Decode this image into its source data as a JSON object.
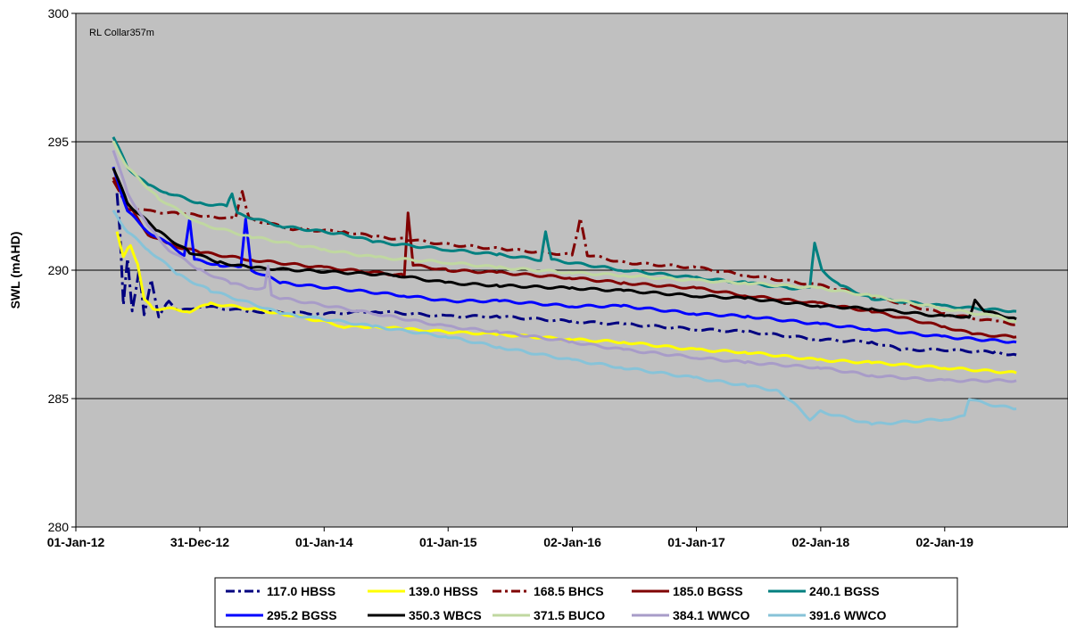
{
  "chart_data": {
    "type": "line",
    "ylabel": "SWL (mAHD)",
    "ylim": [
      280,
      300
    ],
    "yticks": [
      280,
      285,
      290,
      295,
      300
    ],
    "xlim": [
      "2012-01-01",
      "2019-12-31"
    ],
    "xticks": [
      {
        "label": "01-Jan-12",
        "date": "2012-01-01"
      },
      {
        "label": "31-Dec-12",
        "date": "2012-12-31"
      },
      {
        "label": "01-Jan-14",
        "date": "2014-01-01"
      },
      {
        "label": "01-Jan-15",
        "date": "2015-01-01"
      },
      {
        "label": "02-Jan-16",
        "date": "2016-01-02"
      },
      {
        "label": "01-Jan-17",
        "date": "2017-01-01"
      },
      {
        "label": "02-Jan-18",
        "date": "2018-01-02"
      },
      {
        "label": "02-Jan-19",
        "date": "2019-01-02"
      }
    ],
    "annotation": "RL Collar357m",
    "grid": "horizontal",
    "legend_position": "bottom",
    "plot_background": "#c0c0c0",
    "series": [
      {
        "name": "117.0 HBSS",
        "color": "#000080",
        "dash": "dashdot",
        "points": [
          [
            "2012-05-01",
            293.0
          ],
          [
            "2012-05-10",
            291.5
          ],
          [
            "2012-05-20",
            288.6
          ],
          [
            "2012-06-01",
            290.5
          ],
          [
            "2012-06-15",
            288.4
          ],
          [
            "2012-07-05",
            290.0
          ],
          [
            "2012-07-20",
            288.3
          ],
          [
            "2012-08-10",
            289.6
          ],
          [
            "2012-09-01",
            288.2
          ],
          [
            "2012-10-01",
            288.8
          ],
          [
            "2012-11-01",
            288.4
          ],
          [
            "2013-01-01",
            288.6
          ],
          [
            "2013-06-01",
            288.4
          ],
          [
            "2014-01-01",
            288.3
          ],
          [
            "2014-06-01",
            288.4
          ],
          [
            "2015-01-01",
            288.2
          ],
          [
            "2015-06-01",
            288.2
          ],
          [
            "2016-01-01",
            288.0
          ],
          [
            "2016-06-01",
            287.9
          ],
          [
            "2017-01-01",
            287.7
          ],
          [
            "2017-06-01",
            287.6
          ],
          [
            "2018-01-01",
            287.3
          ],
          [
            "2018-06-01",
            287.2
          ],
          [
            "2018-09-01",
            286.9
          ],
          [
            "2019-01-01",
            286.9
          ],
          [
            "2019-06-01",
            286.8
          ],
          [
            "2019-08-01",
            286.7
          ]
        ]
      },
      {
        "name": "139.0 HBSS",
        "color": "#ffff00",
        "dash": "solid",
        "points": [
          [
            "2012-05-01",
            291.5
          ],
          [
            "2012-05-20",
            290.5
          ],
          [
            "2012-06-10",
            291.0
          ],
          [
            "2012-07-01",
            290.2
          ],
          [
            "2012-07-20",
            288.9
          ],
          [
            "2012-08-15",
            288.5
          ],
          [
            "2012-10-01",
            288.5
          ],
          [
            "2012-12-01",
            288.4
          ],
          [
            "2013-02-01",
            288.7
          ],
          [
            "2013-06-01",
            288.5
          ],
          [
            "2013-09-01",
            288.3
          ],
          [
            "2014-01-01",
            288.0
          ],
          [
            "2014-03-01",
            287.8
          ],
          [
            "2014-06-01",
            287.8
          ],
          [
            "2014-09-01",
            287.7
          ],
          [
            "2015-01-01",
            287.6
          ],
          [
            "2015-06-01",
            287.5
          ],
          [
            "2016-01-01",
            287.3
          ],
          [
            "2016-06-01",
            287.2
          ],
          [
            "2017-01-01",
            286.9
          ],
          [
            "2017-06-01",
            286.8
          ],
          [
            "2018-01-01",
            286.5
          ],
          [
            "2018-06-01",
            286.4
          ],
          [
            "2019-01-01",
            286.2
          ],
          [
            "2019-08-01",
            286.0
          ]
        ]
      },
      {
        "name": "168.5 BHCS",
        "color": "#800000",
        "dash": "dashdot",
        "points": [
          [
            "2012-04-20",
            293.5
          ],
          [
            "2012-06-01",
            292.4
          ],
          [
            "2012-08-01",
            292.3
          ],
          [
            "2012-11-01",
            292.2
          ],
          [
            "2013-02-01",
            292.1
          ],
          [
            "2013-04-15",
            292.0
          ],
          [
            "2013-05-05",
            293.1
          ],
          [
            "2013-05-25",
            292.0
          ],
          [
            "2013-10-01",
            291.6
          ],
          [
            "2014-03-01",
            291.5
          ],
          [
            "2014-06-01",
            291.3
          ],
          [
            "2014-09-01",
            291.2
          ],
          [
            "2015-01-01",
            291.0
          ],
          [
            "2015-07-01",
            290.8
          ],
          [
            "2016-01-01",
            290.6
          ],
          [
            "2016-01-25",
            292.0
          ],
          [
            "2016-02-15",
            290.6
          ],
          [
            "2016-06-01",
            290.3
          ],
          [
            "2017-01-01",
            290.1
          ],
          [
            "2017-06-01",
            289.8
          ],
          [
            "2018-01-01",
            289.4
          ],
          [
            "2018-06-01",
            289.0
          ],
          [
            "2019-01-01",
            288.3
          ],
          [
            "2019-06-01",
            288.0
          ],
          [
            "2019-08-01",
            287.9
          ]
        ]
      },
      {
        "name": "185.0 BGSS",
        "color": "#800000",
        "dash": "solid",
        "points": [
          [
            "2012-04-20",
            293.6
          ],
          [
            "2012-06-01",
            292.6
          ],
          [
            "2012-08-01",
            291.4
          ],
          [
            "2012-10-01",
            291.0
          ],
          [
            "2013-01-01",
            290.7
          ],
          [
            "2013-06-01",
            290.4
          ],
          [
            "2014-01-01",
            290.1
          ],
          [
            "2014-08-25",
            289.8
          ],
          [
            "2014-09-05",
            292.2
          ],
          [
            "2014-09-20",
            290.2
          ],
          [
            "2015-01-01",
            290.0
          ],
          [
            "2015-06-01",
            289.9
          ],
          [
            "2016-01-01",
            289.7
          ],
          [
            "2016-06-01",
            289.5
          ],
          [
            "2017-01-01",
            289.3
          ],
          [
            "2017-06-01",
            289.0
          ],
          [
            "2018-01-01",
            288.7
          ],
          [
            "2018-06-01",
            288.4
          ],
          [
            "2019-01-01",
            287.8
          ],
          [
            "2019-04-01",
            287.5
          ],
          [
            "2019-08-01",
            287.4
          ]
        ]
      },
      {
        "name": "240.1 BGSS",
        "color": "#008080",
        "dash": "solid",
        "points": [
          [
            "2012-04-20",
            295.2
          ],
          [
            "2012-06-01",
            294.0
          ],
          [
            "2012-08-01",
            293.3
          ],
          [
            "2012-10-01",
            293.0
          ],
          [
            "2013-01-01",
            292.6
          ],
          [
            "2013-03-20",
            292.5
          ],
          [
            "2013-04-05",
            293.0
          ],
          [
            "2013-04-20",
            292.2
          ],
          [
            "2013-09-01",
            291.7
          ],
          [
            "2014-03-01",
            291.4
          ],
          [
            "2014-06-01",
            291.1
          ],
          [
            "2015-01-01",
            290.8
          ],
          [
            "2015-06-01",
            290.6
          ],
          [
            "2015-10-01",
            290.4
          ],
          [
            "2015-10-15",
            291.5
          ],
          [
            "2015-11-01",
            290.4
          ],
          [
            "2016-06-01",
            290.0
          ],
          [
            "2017-01-01",
            289.7
          ],
          [
            "2017-06-01",
            289.5
          ],
          [
            "2017-10-01",
            289.3
          ],
          [
            "2017-12-01",
            289.3
          ],
          [
            "2017-12-15",
            291.1
          ],
          [
            "2018-01-05",
            290.0
          ],
          [
            "2018-03-01",
            289.4
          ],
          [
            "2018-06-01",
            288.9
          ],
          [
            "2019-01-01",
            288.6
          ],
          [
            "2019-08-01",
            288.4
          ]
        ]
      },
      {
        "name": "295.2 BGSS",
        "color": "#0000ff",
        "dash": "solid",
        "points": [
          [
            "2012-04-20",
            294.0
          ],
          [
            "2012-06-01",
            292.3
          ],
          [
            "2012-08-01",
            291.5
          ],
          [
            "2012-10-01",
            291.0
          ],
          [
            "2012-11-15",
            290.6
          ],
          [
            "2012-12-01",
            292.0
          ],
          [
            "2012-12-15",
            290.4
          ],
          [
            "2013-03-01",
            290.2
          ],
          [
            "2013-05-01",
            290.1
          ],
          [
            "2013-05-15",
            292.0
          ],
          [
            "2013-06-01",
            290.0
          ],
          [
            "2013-09-01",
            289.5
          ],
          [
            "2014-09-01",
            289.0
          ],
          [
            "2015-01-01",
            288.8
          ],
          [
            "2015-06-01",
            288.8
          ],
          [
            "2016-01-01",
            288.6
          ],
          [
            "2016-06-01",
            288.6
          ],
          [
            "2017-01-01",
            288.3
          ],
          [
            "2017-06-01",
            288.2
          ],
          [
            "2018-01-01",
            287.9
          ],
          [
            "2018-06-01",
            287.7
          ],
          [
            "2019-01-01",
            287.4
          ],
          [
            "2019-08-01",
            287.2
          ]
        ]
      },
      {
        "name": "350.3 WBCS",
        "color": "#000000",
        "dash": "solid",
        "points": [
          [
            "2012-04-20",
            294.0
          ],
          [
            "2012-06-01",
            292.6
          ],
          [
            "2012-09-01",
            291.5
          ],
          [
            "2012-12-01",
            290.7
          ],
          [
            "2013-03-01",
            290.3
          ],
          [
            "2013-06-01",
            290.1
          ],
          [
            "2014-08-01",
            289.8
          ],
          [
            "2015-01-01",
            289.5
          ],
          [
            "2015-06-01",
            289.4
          ],
          [
            "2016-01-01",
            289.3
          ],
          [
            "2016-06-01",
            289.2
          ],
          [
            "2017-01-01",
            289.0
          ],
          [
            "2017-06-01",
            288.9
          ],
          [
            "2018-01-01",
            288.6
          ],
          [
            "2018-06-01",
            288.5
          ],
          [
            "2019-01-01",
            288.2
          ],
          [
            "2019-03-15",
            288.2
          ],
          [
            "2019-04-01",
            288.8
          ],
          [
            "2019-05-01",
            288.4
          ],
          [
            "2019-08-01",
            288.1
          ]
        ]
      },
      {
        "name": "371.5 BUCO",
        "color": "#c0d8a0",
        "dash": "solid",
        "points": [
          [
            "2012-04-20",
            295.0
          ],
          [
            "2012-06-01",
            294.0
          ],
          [
            "2012-09-01",
            292.8
          ],
          [
            "2013-01-01",
            291.8
          ],
          [
            "2013-06-01",
            291.3
          ],
          [
            "2014-01-01",
            290.8
          ],
          [
            "2014-06-01",
            290.5
          ],
          [
            "2015-01-01",
            290.3
          ],
          [
            "2015-06-01",
            290.1
          ],
          [
            "2016-01-01",
            289.9
          ],
          [
            "2016-06-01",
            289.8
          ],
          [
            "2017-01-01",
            289.6
          ],
          [
            "2017-06-01",
            289.5
          ],
          [
            "2018-01-01",
            289.3
          ],
          [
            "2018-06-01",
            289.0
          ],
          [
            "2019-01-01",
            288.5
          ],
          [
            "2019-06-01",
            288.2
          ],
          [
            "2019-08-01",
            288.0
          ]
        ]
      },
      {
        "name": "384.1 WWCO",
        "color": "#a89cc8",
        "dash": "solid",
        "points": [
          [
            "2012-04-20",
            294.7
          ],
          [
            "2012-06-01",
            293.0
          ],
          [
            "2012-08-01",
            291.7
          ],
          [
            "2012-10-01",
            290.8
          ],
          [
            "2013-01-01",
            290.0
          ],
          [
            "2013-04-01",
            289.5
          ],
          [
            "2013-06-01",
            289.3
          ],
          [
            "2013-07-10",
            289.3
          ],
          [
            "2013-07-20",
            290.2
          ],
          [
            "2013-07-30",
            289.0
          ],
          [
            "2013-09-01",
            288.9
          ],
          [
            "2014-06-01",
            288.3
          ],
          [
            "2015-01-01",
            287.8
          ],
          [
            "2015-06-01",
            287.6
          ],
          [
            "2016-01-01",
            287.2
          ],
          [
            "2016-06-01",
            286.9
          ],
          [
            "2017-01-01",
            286.6
          ],
          [
            "2017-06-01",
            286.4
          ],
          [
            "2018-01-01",
            286.2
          ],
          [
            "2018-06-01",
            285.9
          ],
          [
            "2019-01-01",
            285.7
          ],
          [
            "2019-08-01",
            285.7
          ]
        ]
      },
      {
        "name": "391.6 WWCO",
        "color": "#87c3d8",
        "dash": "solid",
        "points": [
          [
            "2012-04-20",
            292.3
          ],
          [
            "2012-06-01",
            291.5
          ],
          [
            "2012-08-01",
            290.8
          ],
          [
            "2012-11-01",
            289.8
          ],
          [
            "2013-02-01",
            289.2
          ],
          [
            "2013-06-01",
            288.7
          ],
          [
            "2013-09-01",
            288.3
          ],
          [
            "2014-01-01",
            288.1
          ],
          [
            "2014-06-01",
            287.8
          ],
          [
            "2015-01-01",
            287.4
          ],
          [
            "2015-06-01",
            287.0
          ],
          [
            "2016-01-01",
            286.5
          ],
          [
            "2016-06-01",
            286.2
          ],
          [
            "2017-01-01",
            285.8
          ],
          [
            "2017-06-01",
            285.5
          ],
          [
            "2017-09-01",
            285.3
          ],
          [
            "2017-10-15",
            284.8
          ],
          [
            "2017-12-01",
            284.2
          ],
          [
            "2018-01-01",
            284.5
          ],
          [
            "2018-06-01",
            284.0
          ],
          [
            "2019-01-01",
            284.2
          ],
          [
            "2019-03-01",
            284.3
          ],
          [
            "2019-03-15",
            285.0
          ],
          [
            "2019-05-01",
            284.8
          ],
          [
            "2019-08-01",
            284.6
          ]
        ]
      }
    ]
  }
}
